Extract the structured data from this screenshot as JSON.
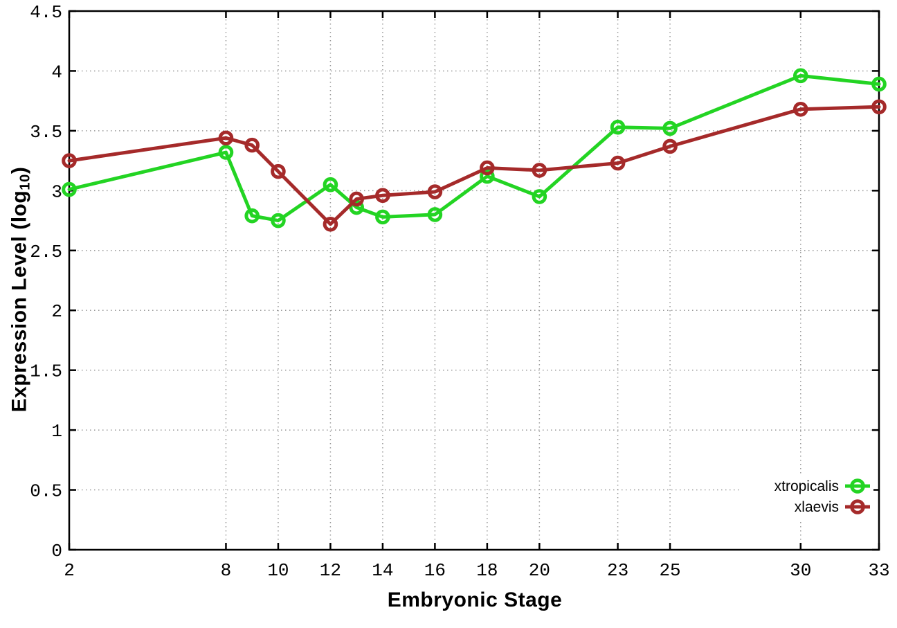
{
  "labels": {
    "xlabel": "Embryonic Stage",
    "ylabel_prefix": "Expression Level (log",
    "ylabel_sub": "10",
    "ylabel_suffix": ")"
  },
  "chart_data": {
    "type": "line",
    "title": "",
    "xlabel": "Embryonic Stage",
    "ylabel": "Expression Level (log10)",
    "x": [
      2,
      8,
      9,
      10,
      12,
      13,
      14,
      16,
      18,
      20,
      23,
      25,
      30,
      33
    ],
    "series": [
      {
        "name": "xtropicalis",
        "color": "#23d423",
        "values": [
          3.01,
          3.32,
          2.79,
          2.75,
          3.05,
          2.86,
          2.78,
          2.8,
          3.12,
          2.95,
          3.53,
          3.52,
          3.96,
          3.89
        ]
      },
      {
        "name": "xlaevis",
        "color": "#a52a2a",
        "values": [
          3.25,
          3.44,
          3.38,
          3.16,
          2.72,
          2.93,
          2.96,
          2.99,
          3.19,
          3.17,
          3.23,
          3.37,
          3.68,
          3.7
        ]
      }
    ],
    "xlim": [
      2,
      33
    ],
    "ylim": [
      0,
      4.5
    ],
    "xticks": [
      2,
      8,
      10,
      12,
      14,
      16,
      18,
      20,
      23,
      25,
      30,
      33
    ],
    "yticks": [
      0,
      0.5,
      1,
      1.5,
      2,
      2.5,
      3,
      3.5,
      4,
      4.5
    ],
    "grid": true,
    "grid_color": "#999999",
    "axis_color": "#000000",
    "legend_position": "bottom-right",
    "marker": "open-circle"
  }
}
